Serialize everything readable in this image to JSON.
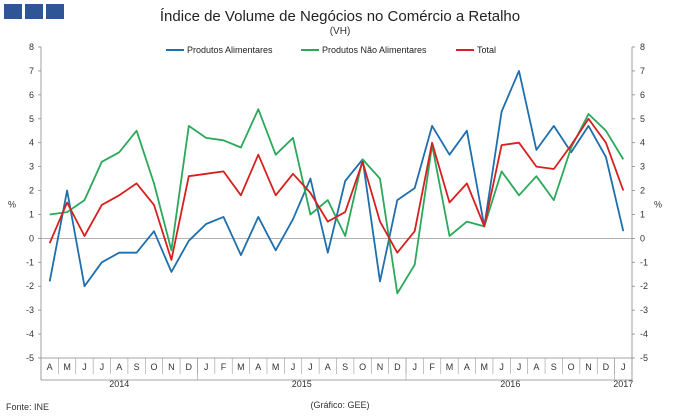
{
  "header": {
    "title": "Índice de Volume de Negócios no Comércio a Retalho",
    "subtitle": "(VH)"
  },
  "footer": {
    "source": "Fonte: INE",
    "credit": "(Gráfico: GEE)"
  },
  "colors": {
    "alimentares": "#1f6fad",
    "nao_alimentares": "#2ca85a",
    "total": "#d62020",
    "logo": "#2f5597"
  },
  "chart_data": {
    "type": "line",
    "title": "Índice de Volume de Negócios no Comércio a Retalho",
    "ylabel": "%",
    "ylim": [
      -5,
      8
    ],
    "yticks": [
      8,
      7,
      6,
      5,
      4,
      3,
      2,
      1,
      0,
      -1,
      -2,
      -3,
      -4,
      -5
    ],
    "categories": [
      "A",
      "M",
      "J",
      "J",
      "A",
      "S",
      "O",
      "N",
      "D",
      "J",
      "F",
      "M",
      "A",
      "M",
      "J",
      "J",
      "A",
      "S",
      "O",
      "N",
      "D",
      "J",
      "F",
      "M",
      "A",
      "M",
      "J",
      "J",
      "A",
      "S",
      "O",
      "N",
      "D",
      "J"
    ],
    "years": [
      {
        "label": "2014",
        "start": 0,
        "end": 8
      },
      {
        "label": "2015",
        "start": 9,
        "end": 20
      },
      {
        "label": "2016",
        "start": 21,
        "end": 32
      },
      {
        "label": "2017",
        "start": 33,
        "end": 33
      }
    ],
    "legend_position": "top",
    "series": [
      {
        "name": "Produtos Alimentares",
        "color": "#1f6fad",
        "values": [
          -1.8,
          2.0,
          -2.0,
          -1.0,
          -0.6,
          -0.6,
          0.3,
          -1.4,
          -0.1,
          0.6,
          0.9,
          -0.7,
          0.9,
          -0.5,
          0.8,
          2.5,
          -0.6,
          2.4,
          3.3,
          -1.8,
          1.6,
          2.1,
          4.7,
          3.5,
          4.5,
          0.5,
          5.3,
          7.0,
          3.7,
          4.7,
          3.6,
          4.7,
          3.4,
          0.3
        ]
      },
      {
        "name": "Produtos Não Alimentares",
        "color": "#2ca85a",
        "values": [
          1.0,
          1.1,
          1.6,
          3.2,
          3.6,
          4.5,
          2.3,
          -0.5,
          4.7,
          4.2,
          4.1,
          3.8,
          5.4,
          3.5,
          4.2,
          1.0,
          1.6,
          0.1,
          3.3,
          2.5,
          -2.3,
          -1.1,
          3.9,
          0.1,
          0.7,
          0.5,
          2.8,
          1.8,
          2.6,
          1.6,
          3.8,
          5.2,
          4.5,
          3.3
        ]
      },
      {
        "name": "Total",
        "color": "#d62020",
        "values": [
          -0.2,
          1.5,
          0.1,
          1.4,
          1.8,
          2.3,
          1.4,
          -0.9,
          2.6,
          2.7,
          2.8,
          1.8,
          3.5,
          1.8,
          2.7,
          1.9,
          0.7,
          1.1,
          3.2,
          0.7,
          -0.6,
          0.3,
          4.0,
          1.5,
          2.3,
          0.5,
          3.9,
          4.0,
          3.0,
          2.9,
          3.9,
          5.0,
          4.0,
          2.0
        ]
      }
    ]
  }
}
